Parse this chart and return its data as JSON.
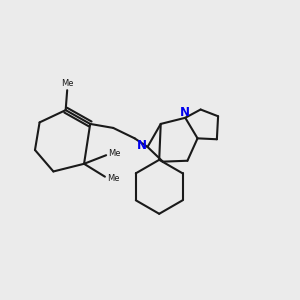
{
  "background_color": "#ebebeb",
  "bond_color": "#1a1a1a",
  "N_color": "#0000ee",
  "line_width": 1.5,
  "figsize": [
    3.0,
    3.0
  ],
  "dpi": 100,
  "xlim": [
    0.2,
    9.8
  ],
  "ylim": [
    0.5,
    9.5
  ]
}
